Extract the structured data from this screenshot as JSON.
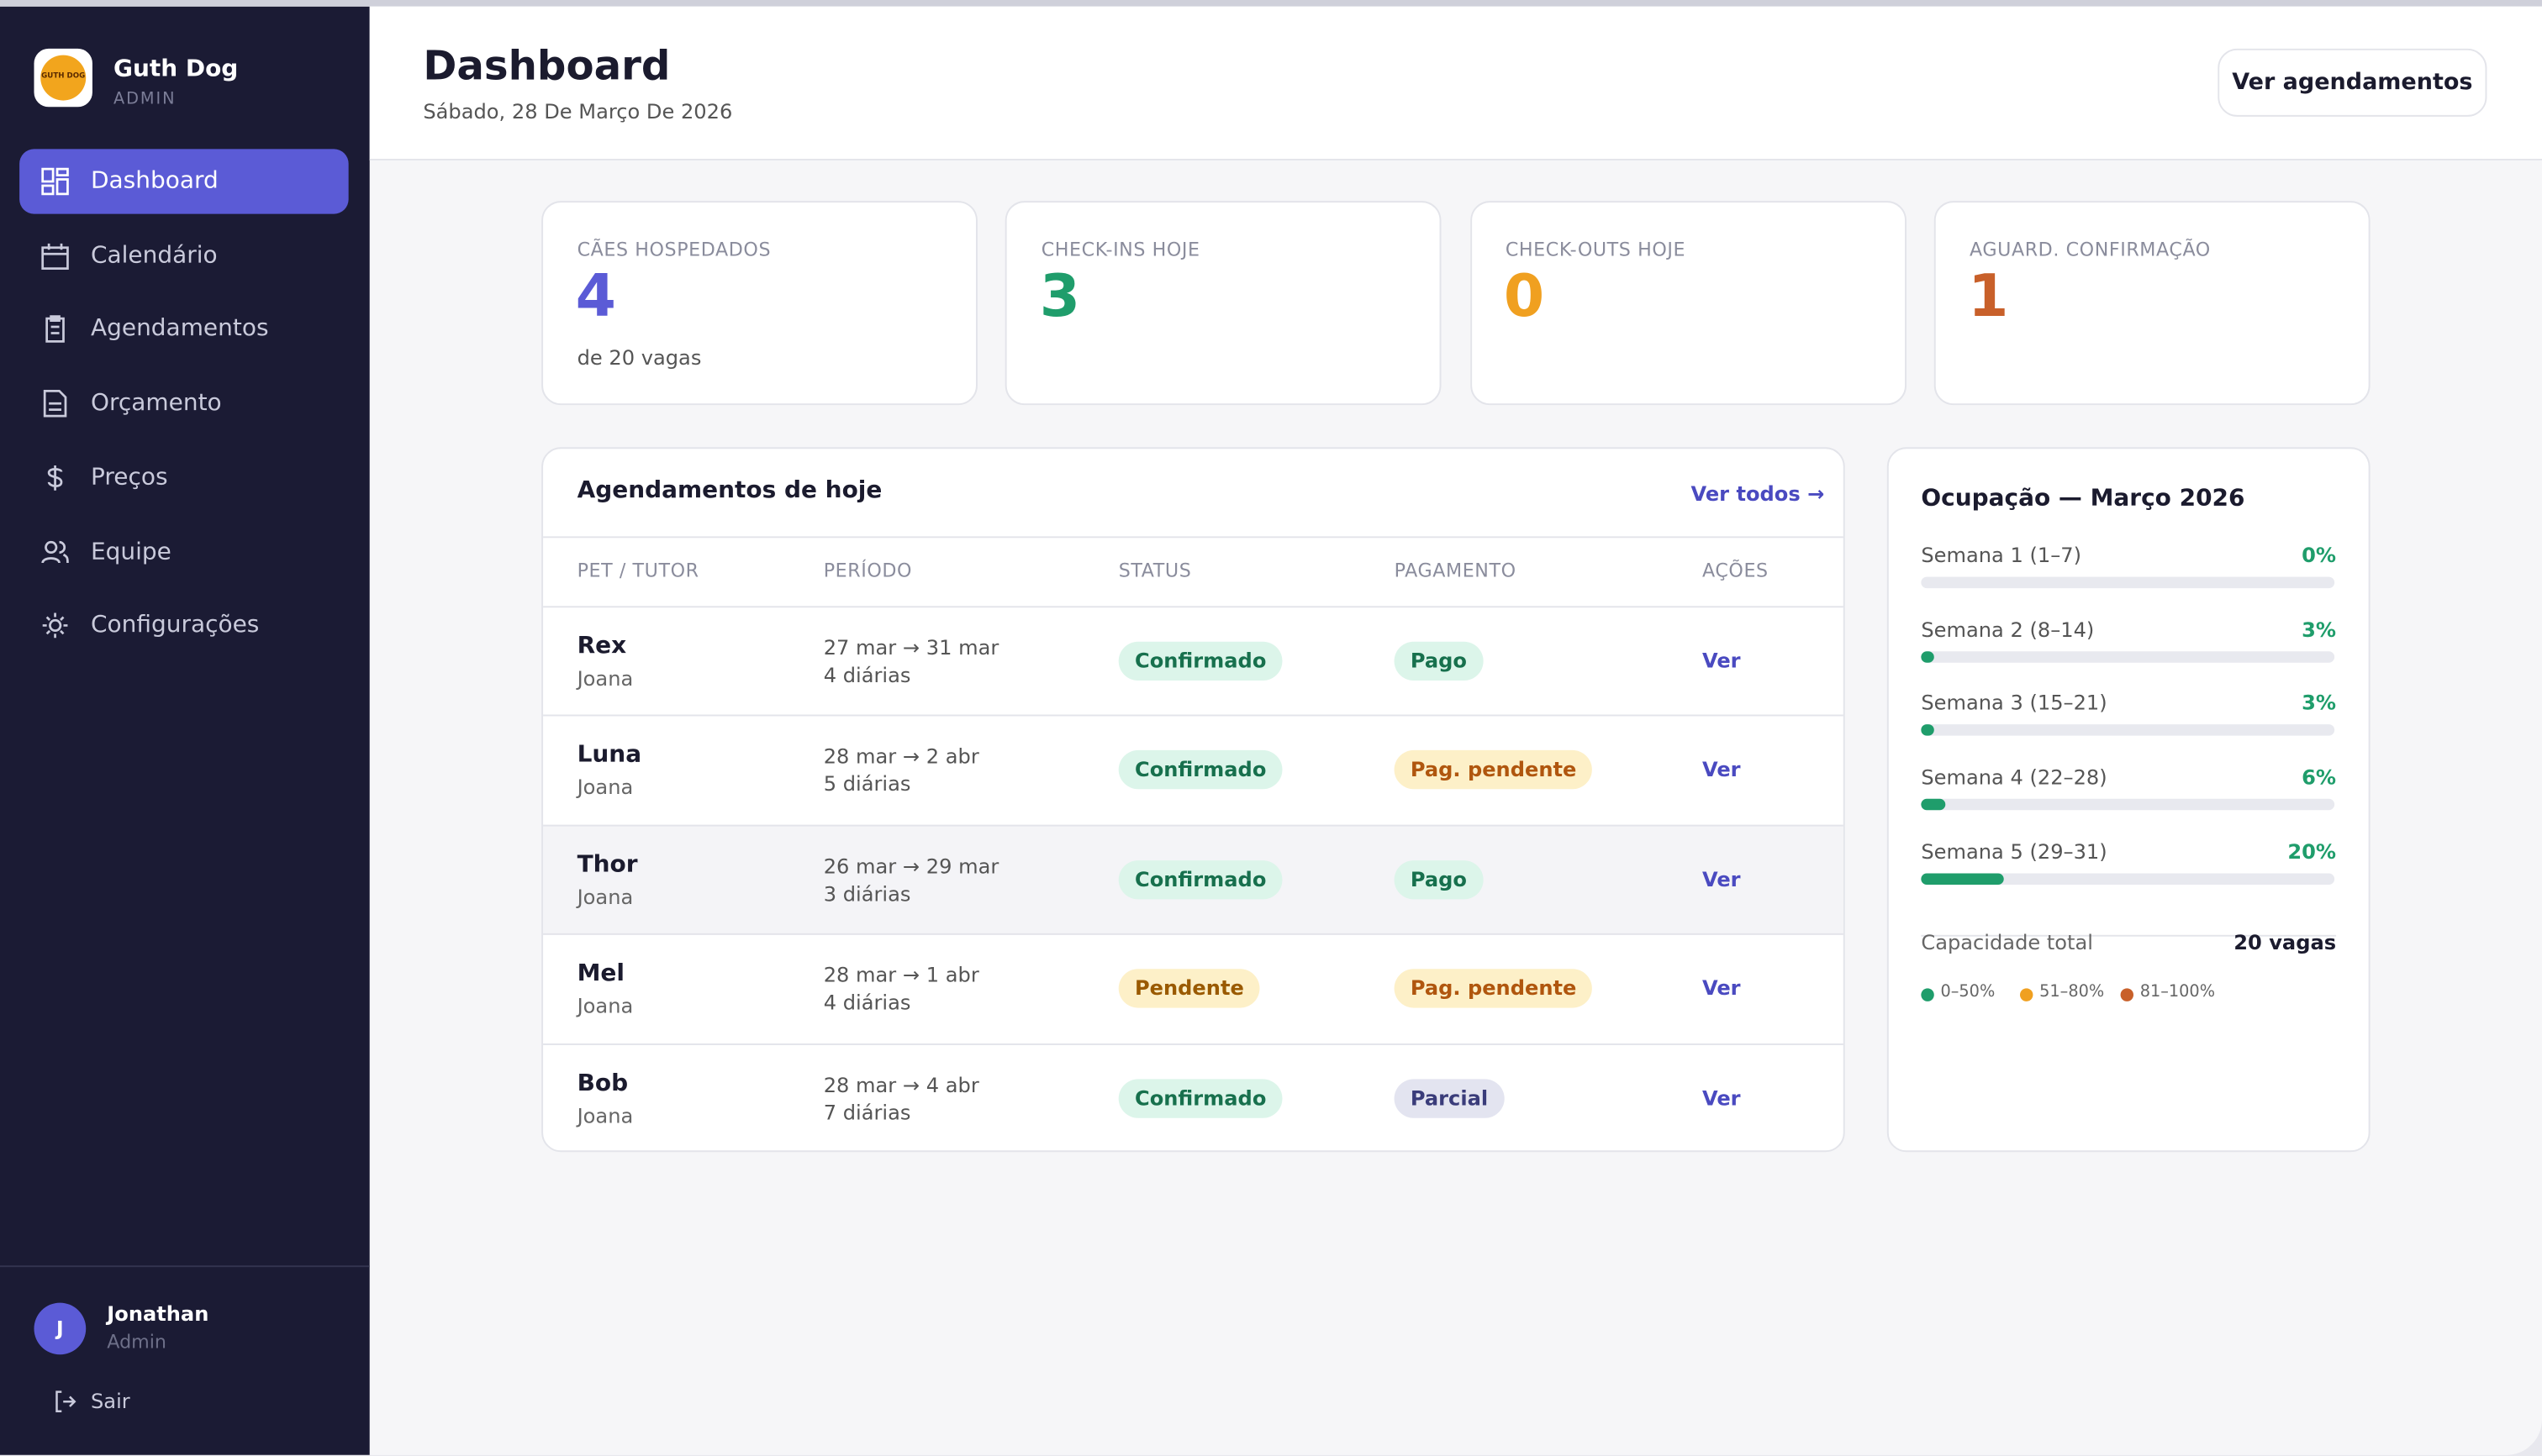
{
  "sidebar": {
    "brand": "Guth Dog",
    "role": "ADMIN",
    "logo_text": "GUTH DOG",
    "nav": [
      "Dashboard",
      "Calendário",
      "Agendamentos",
      "Orçamento",
      "Preços",
      "Equipe",
      "Configurações"
    ],
    "user": {
      "initial": "J",
      "name": "Jonathan",
      "role": "Admin"
    },
    "logout": "Sair"
  },
  "header": {
    "title": "Dashboard",
    "date": "Sábado, 28 De Março De 2026",
    "button": "Ver agendamentos"
  },
  "stats": [
    {
      "label": "CÃES HOSPEDADOS",
      "value": "4",
      "sub": "de 20 vagas"
    },
    {
      "label": "CHECK-INS HOJE",
      "value": "3"
    },
    {
      "label": "CHECK-OUTS HOJE",
      "value": "0"
    },
    {
      "label": "AGUARD. CONFIRMAÇÃO",
      "value": "1"
    }
  ],
  "table": {
    "title": "Agendamentos de hoje",
    "link": "Ver todos →",
    "columns": [
      "PET / TUTOR",
      "PERÍODO",
      "STATUS",
      "PAGAMENTO",
      "AÇÕES"
    ],
    "rows": [
      [
        "Rex",
        "Joana",
        "27 mar → 31 mar",
        "4 diárias",
        "Confirmado",
        "Pago",
        "Ver"
      ],
      [
        "Luna",
        "Joana",
        "28 mar → 2 abr",
        "5 diárias",
        "Confirmado",
        "Pag. pendente",
        "Ver"
      ],
      [
        "Thor",
        "Joana",
        "26 mar → 29 mar",
        "3 diárias",
        "Confirmado",
        "Pago",
        "Ver"
      ],
      [
        "Mel",
        "Joana",
        "28 mar → 1 abr",
        "4 diárias",
        "Pendente",
        "Pag. pendente",
        "Ver"
      ],
      [
        "Bob",
        "Joana",
        "28 mar → 4 abr",
        "7 diárias",
        "Confirmado",
        "Parcial",
        "Ver"
      ]
    ]
  },
  "occupancy": {
    "title": "Ocupação — Março 2026",
    "weeks": [
      {
        "name": "Semana 1 (1–7)",
        "percent": {
          "value": 0,
          "label": "0%"
        }
      },
      {
        "name": "Semana 2 (8–14)",
        "percent": {
          "value": 3,
          "label": "3%"
        }
      },
      {
        "name": "Semana 3 (15–21)",
        "percent": {
          "value": 3,
          "label": "3%"
        }
      },
      {
        "name": "Semana 4 (22–28)",
        "percent": {
          "value": 6,
          "label": "6%"
        }
      },
      {
        "name": "Semana 5 (29–31)",
        "percent": {
          "value": 20,
          "label": "20%"
        }
      }
    ],
    "capacity_label": "Capacidade total",
    "capacity_value": "20 vagas",
    "legend": [
      "0–50%",
      "51–80%",
      "81–100%"
    ]
  }
}
